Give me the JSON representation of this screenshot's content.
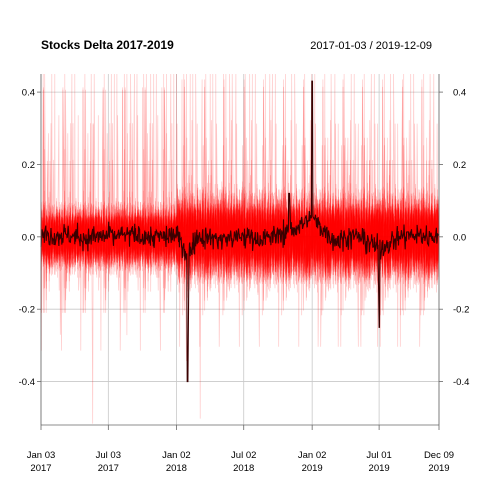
{
  "chart_data": {
    "type": "line",
    "title": "Stocks Delta 2017-2019",
    "date_range": "2017-01-03 / 2019-12-09",
    "xlabel": "",
    "ylabel": "",
    "x_range": [
      "2017-01-03",
      "2019-12-09"
    ],
    "ylim": [
      -0.52,
      0.45
    ],
    "y_ticks": [
      {
        "value": 0.4,
        "label": "0.4"
      },
      {
        "value": 0.2,
        "label": "0.2"
      },
      {
        "value": 0.0,
        "label": "0.0"
      },
      {
        "value": -0.2,
        "label": "-0.2"
      },
      {
        "value": -0.4,
        "label": "-0.4"
      }
    ],
    "x_ticks": [
      {
        "date": "2017-01-03",
        "line1": "Jan 03",
        "line2": "2017"
      },
      {
        "date": "2017-07-03",
        "line1": "Jul 03",
        "line2": "2017"
      },
      {
        "date": "2018-01-02",
        "line1": "Jan 02",
        "line2": "2018"
      },
      {
        "date": "2018-07-02",
        "line1": "Jul 02",
        "line2": "2018"
      },
      {
        "date": "2019-01-02",
        "line1": "Jan 02",
        "line2": "2019"
      },
      {
        "date": "2019-07-01",
        "line1": "Jul 01",
        "line2": "2019"
      },
      {
        "date": "2019-12-09",
        "line1": "Dec 09",
        "line2": "2019"
      }
    ],
    "grid": true,
    "series_colors": {
      "individual": "#ff0000",
      "aggregate": "#3a0000"
    },
    "series_count": 50,
    "series": [
      {
        "name": "",
        "x": [
          "2017-01-03",
          "2017-03-01",
          "2017-05-01",
          "2017-07-03",
          "2017-09-01",
          "2017-11-01",
          "2018-01-02",
          "2018-02-01",
          "2018-03-01",
          "2018-05-01",
          "2018-07-02",
          "2018-09-03",
          "2018-11-01",
          "2019-01-02",
          "2019-03-01",
          "2019-05-01",
          "2019-07-01",
          "2019-09-02",
          "2019-12-09"
        ],
        "values": [
          0.01,
          0.05,
          -0.03,
          0.02,
          0.04,
          -0.01,
          0.03,
          -0.4,
          0.02,
          -0.05,
          0.01,
          -0.06,
          0.12,
          0.43,
          -0.08,
          0.02,
          -0.25,
          0.03,
          0.02
        ]
      }
    ]
  }
}
